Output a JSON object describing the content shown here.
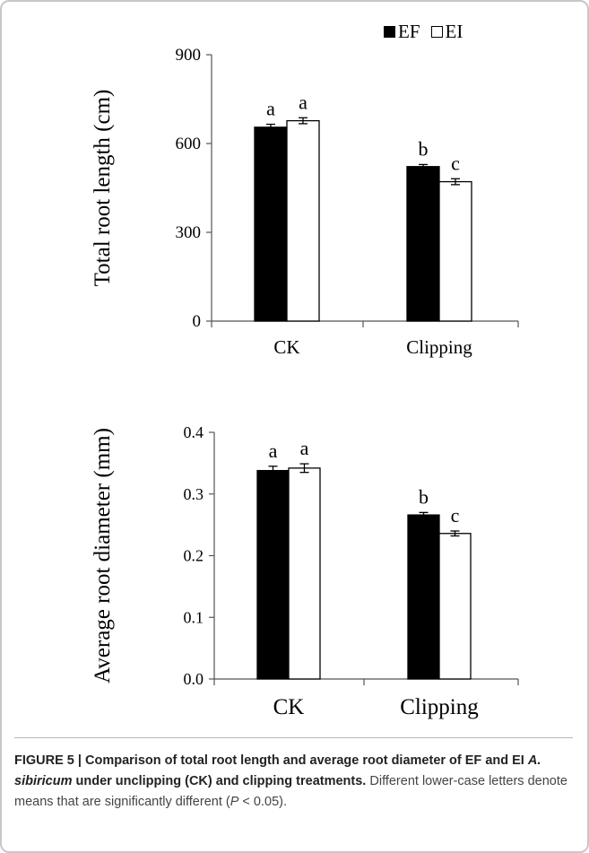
{
  "colors": {
    "EF": "#000000",
    "EI": "#ffffff",
    "caption_accent": "#c0392b"
  },
  "legend": [
    {
      "name": "EF",
      "color": "#000000"
    },
    {
      "name": "EI",
      "color": "#ffffff"
    }
  ],
  "chart_data": [
    {
      "type": "bar",
      "categories": [
        "CK",
        "Clipping"
      ],
      "ylabel": "Total root length (cm)",
      "ylim": [
        0,
        900
      ],
      "yticks": [
        "0",
        "300",
        "600",
        "900"
      ],
      "series": [
        {
          "name": "EF",
          "values": [
            655,
            522
          ],
          "errors": [
            10,
            7
          ],
          "letters": [
            "a",
            "b"
          ]
        },
        {
          "name": "EI",
          "values": [
            677,
            471
          ],
          "errors": [
            10,
            10
          ],
          "letters": [
            "a",
            "c"
          ]
        }
      ]
    },
    {
      "type": "bar",
      "categories": [
        "CK",
        "Clipping"
      ],
      "ylabel": "Average root diameter (mm)",
      "ylim": [
        0,
        0.4
      ],
      "yticks": [
        "0.0",
        "0.1",
        "0.2",
        "0.3",
        "0.4"
      ],
      "series": [
        {
          "name": "EF",
          "values": [
            0.338,
            0.266
          ],
          "errors": [
            0.007,
            0.004
          ],
          "letters": [
            "a",
            "b"
          ]
        },
        {
          "name": "EI",
          "values": [
            0.342,
            0.236
          ],
          "errors": [
            0.007,
            0.004
          ],
          "letters": [
            "a",
            "c"
          ]
        }
      ]
    }
  ],
  "caption": {
    "label": "FIGURE 5 | ",
    "title_part1": "Comparison of total root length and average root diameter of EF and EI ",
    "species": "A. sibiricum",
    "title_part2": " under unclipping (CK) and clipping treatments.",
    "text_part1": " Different lower-case letters denote means that are significantly different (",
    "p_symbol": "P",
    "text_part2": " < 0.05)."
  }
}
